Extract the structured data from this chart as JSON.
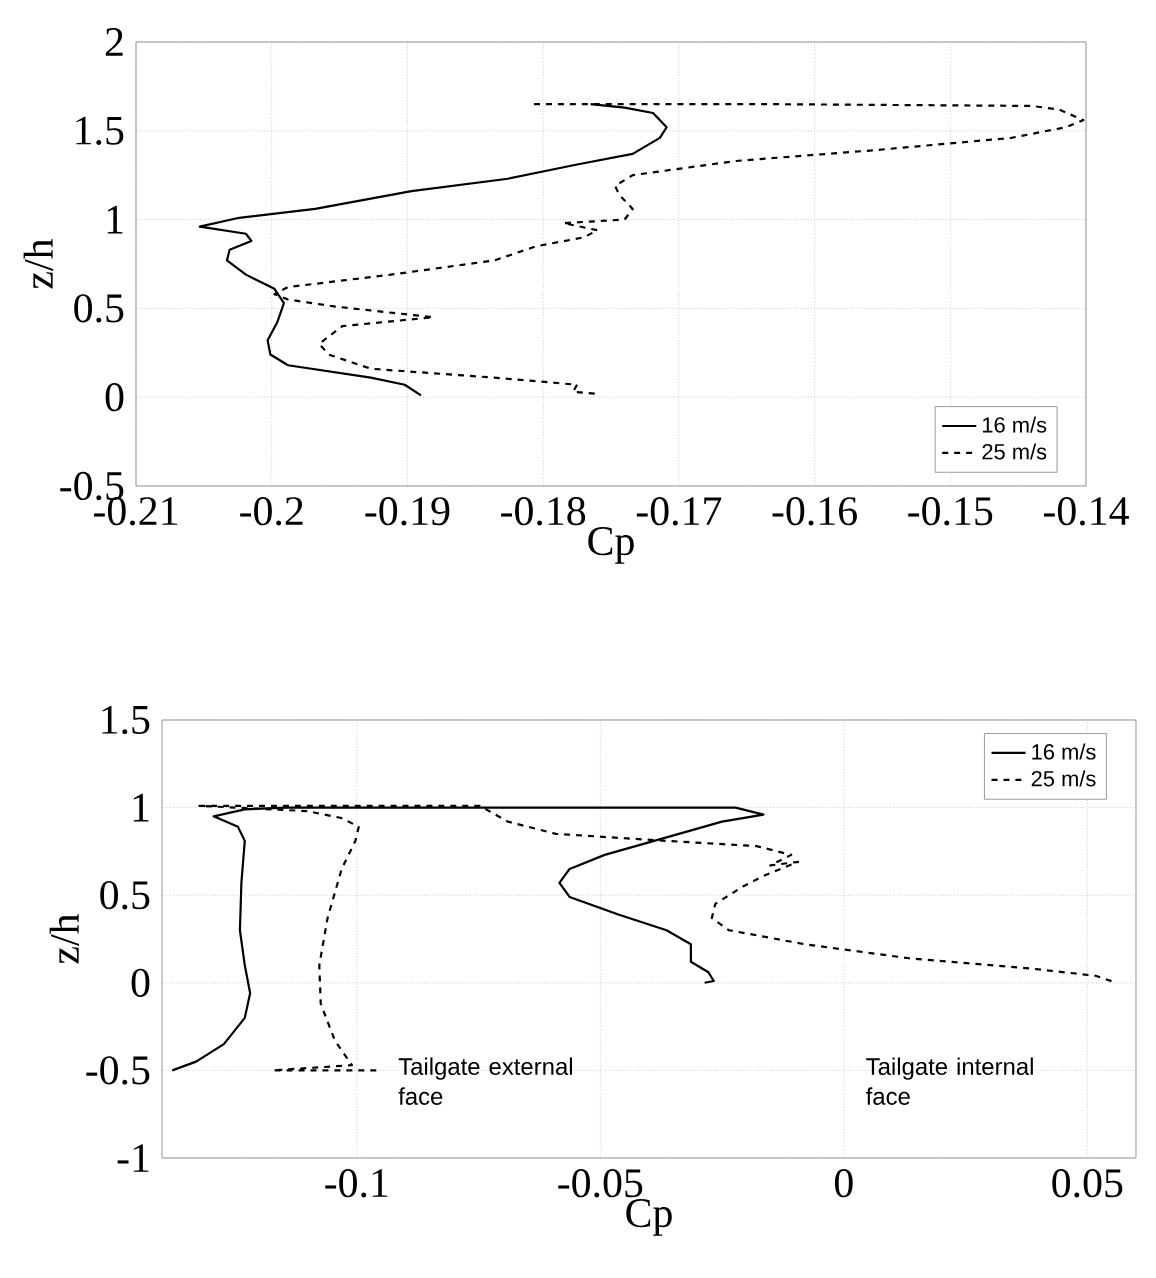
{
  "chart_data": [
    {
      "type": "line",
      "xlabel": "Cp",
      "ylabel": "z/h",
      "xlim": [
        -0.21,
        -0.14
      ],
      "ylim": [
        -0.5,
        2
      ],
      "xticks": [
        -0.21,
        -0.2,
        -0.19,
        -0.18,
        -0.17,
        -0.16,
        -0.15,
        -0.14
      ],
      "yticks": [
        -0.5,
        0,
        0.5,
        1,
        1.5,
        2
      ],
      "grid": true,
      "legend": "bottom right",
      "series": [
        {
          "name": "16 m/s",
          "color": "#000000",
          "line_style": "solid",
          "x": [
            -0.189,
            -0.1902,
            -0.1927,
            -0.1988,
            -0.2001,
            -0.2003,
            -0.1996,
            -0.1991,
            -0.1998,
            -0.2019,
            -0.2033,
            -0.2031,
            -0.2015,
            -0.2019,
            -0.2053,
            -0.2024,
            -0.1968,
            -0.1897,
            -0.1826,
            -0.1775,
            -0.1734,
            -0.1714,
            -0.1709,
            -0.1719,
            -0.174,
            -0.1765
          ],
          "values": [
            0.01,
            0.07,
            0.11,
            0.18,
            0.24,
            0.32,
            0.42,
            0.53,
            0.61,
            0.69,
            0.77,
            0.83,
            0.88,
            0.92,
            0.96,
            1.01,
            1.06,
            1.16,
            1.23,
            1.31,
            1.37,
            1.46,
            1.52,
            1.6,
            1.63,
            1.65
          ]
        },
        {
          "name": "25 m/s",
          "color": "#000000",
          "line_style": "dashed",
          "x": [
            -0.1762,
            -0.1778,
            -0.1775,
            -0.1836,
            -0.1927,
            -0.1958,
            -0.1965,
            -0.1948,
            -0.1881,
            -0.1953,
            -0.1988,
            -0.1998,
            -0.1988,
            -0.1912,
            -0.1836,
            -0.1805,
            -0.177,
            -0.176,
            -0.1785,
            -0.174,
            -0.1734,
            -0.1744,
            -0.1747,
            -0.1734,
            -0.1658,
            -0.1557,
            -0.1455,
            -0.1415,
            -0.1402,
            -0.142,
            -0.144,
            -0.1633,
            -0.1811
          ],
          "values": [
            0.02,
            0.03,
            0.07,
            0.11,
            0.16,
            0.24,
            0.3,
            0.4,
            0.45,
            0.51,
            0.55,
            0.58,
            0.62,
            0.69,
            0.77,
            0.85,
            0.9,
            0.94,
            0.98,
            1.0,
            1.06,
            1.14,
            1.19,
            1.25,
            1.33,
            1.39,
            1.46,
            1.52,
            1.56,
            1.62,
            1.64,
            1.65,
            1.65
          ]
        }
      ]
    },
    {
      "type": "line",
      "xlabel": "Cp",
      "ylabel": "z/h",
      "xlim": [
        -0.14,
        0.06
      ],
      "ylim": [
        -1,
        1.5
      ],
      "xticks": [
        -0.1,
        -0.05,
        0,
        0.05
      ],
      "yticks": [
        -1,
        -0.5,
        0,
        0.5,
        1,
        1.5
      ],
      "grid": true,
      "legend": "top right",
      "annotations": [
        "Tailgate external face",
        "Tailgate internal face"
      ],
      "series": [
        {
          "name": "16 m/s",
          "color": "#000000",
          "line_style": "solid",
          "x": [
            -0.1379,
            -0.133,
            -0.1273,
            -0.123,
            -0.1219,
            -0.123,
            -0.124,
            -0.1237,
            -0.123,
            -0.1244,
            -0.1294,
            -0.123,
            -0.1145,
            -0.0222,
            -0.0165,
            -0.025,
            -0.0364,
            -0.0491,
            -0.0563,
            -0.0584,
            -0.0563,
            -0.0463,
            -0.0364,
            -0.0314,
            -0.0314,
            -0.0278,
            -0.0267,
            -0.0286
          ],
          "values": [
            -0.5,
            -0.45,
            -0.35,
            -0.2,
            -0.06,
            0.1,
            0.3,
            0.57,
            0.81,
            0.89,
            0.95,
            0.99,
            1.0,
            1.0,
            0.96,
            0.92,
            0.83,
            0.73,
            0.65,
            0.57,
            0.49,
            0.39,
            0.3,
            0.22,
            0.12,
            0.06,
            0.01,
            0.0
          ]
        },
        {
          "name": "25 m/s",
          "color": "#000000",
          "line_style": "dashed",
          "x": [
            -0.096,
            -0.1173,
            -0.101,
            -0.1045,
            -0.1074,
            -0.1077,
            -0.106,
            -0.1031,
            -0.1003,
            -0.0996,
            -0.1031,
            -0.1102,
            -0.1323,
            -0.0747,
            -0.069,
            -0.0591,
            -0.0364,
            -0.0179,
            -0.0108,
            -0.0151,
            -0.0094,
            -0.0165,
            -0.0207,
            -0.0264,
            -0.0271,
            -0.0236,
            -0.008,
            0.0134,
            0.0389,
            0.0517,
            0.056
          ],
          "values": [
            -0.5,
            -0.5,
            -0.47,
            -0.33,
            -0.12,
            0.1,
            0.37,
            0.65,
            0.81,
            0.89,
            0.94,
            0.98,
            1.01,
            1.01,
            0.92,
            0.85,
            0.81,
            0.78,
            0.73,
            0.67,
            0.69,
            0.61,
            0.55,
            0.45,
            0.37,
            0.3,
            0.22,
            0.14,
            0.08,
            0.04,
            0.0
          ]
        }
      ]
    }
  ]
}
